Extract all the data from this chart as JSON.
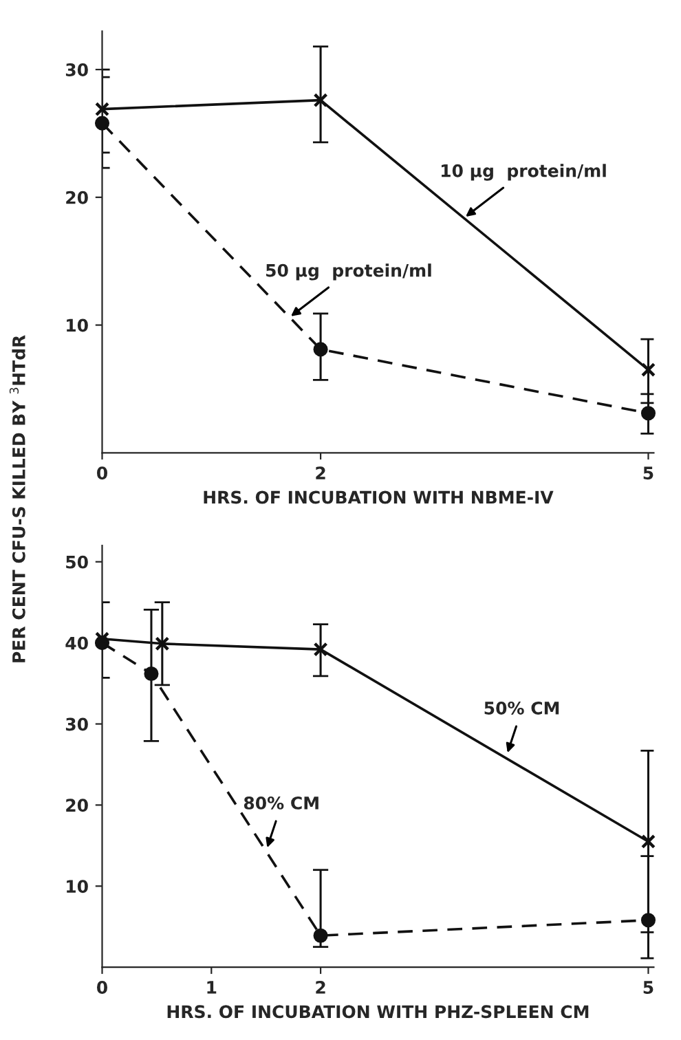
{
  "chart_data": [
    {
      "type": "line",
      "ylabel": "PER CENT CFU-S KILLED BY $^{3}$HTdR",
      "xlabel": "HRS. OF INCUBATION WITH NBME-IV",
      "xlim": [
        0,
        5.05
      ],
      "xticks": [
        0,
        2,
        5
      ],
      "ylim": [
        0,
        33
      ],
      "yticks": [
        10,
        20,
        30
      ],
      "grid": false,
      "legend": false,
      "series": [
        {
          "color": "#111111",
          "marker": "cross",
          "line_style": "solid",
          "x": [
            0,
            2,
            5
          ],
          "values": [
            26.9,
            27.6,
            6.5
          ],
          "errors": [
            [
              23.5,
              30
            ],
            [
              24.3,
              31.8
            ],
            [
              3.9,
              8.9
            ]
          ]
        },
        {
          "color": "#111111",
          "marker": "circle",
          "line_style": "dashed",
          "x": [
            0,
            2,
            5
          ],
          "values": [
            25.8,
            8.1,
            3.1
          ],
          "errors": [
            [
              22.3,
              29.4
            ],
            [
              5.7,
              10.9
            ],
            [
              1.5,
              4.6
            ]
          ]
        }
      ],
      "annotations": [
        {
          "text": "10 µg  protein/ml",
          "x": 3.3,
          "y": 18.3
        },
        {
          "text": "50 µg  protein/ml",
          "x": 1.7,
          "y": 10.5
        }
      ]
    },
    {
      "type": "line",
      "xlabel": "HRS. OF INCUBATION WITH PHZ-SPLEEN CM",
      "xlim": [
        0,
        5.05
      ],
      "xticks": [
        0,
        1,
        2,
        5
      ],
      "ylim": [
        0,
        52
      ],
      "yticks": [
        10,
        20,
        30,
        40,
        50
      ],
      "grid": false,
      "legend": false,
      "series": [
        {
          "color": "#111111",
          "marker": "cross",
          "line_style": "solid",
          "x": [
            0,
            0.55,
            2,
            5
          ],
          "values": [
            40.5,
            39.9,
            39.2,
            15.5
          ],
          "errors": [
            [
              35.7,
              45
            ],
            [
              34.8,
              45
            ],
            [
              35.9,
              42.3
            ],
            [
              4.3,
              26.7
            ]
          ]
        },
        {
          "color": "#111111",
          "marker": "circle",
          "line_style": "dashed",
          "x": [
            0,
            0.45,
            2,
            5
          ],
          "values": [
            40.0,
            36.2,
            3.9,
            5.8
          ],
          "errors": [
            null,
            [
              27.9,
              44.1
            ],
            [
              2.5,
              12
            ],
            [
              1.1,
              13.7
            ]
          ]
        }
      ],
      "annotations": [
        {
          "text": "50% CM",
          "x": 3.7,
          "y": 26
        },
        {
          "text": "80% CM",
          "x": 1.5,
          "y": 14.3
        }
      ]
    }
  ]
}
